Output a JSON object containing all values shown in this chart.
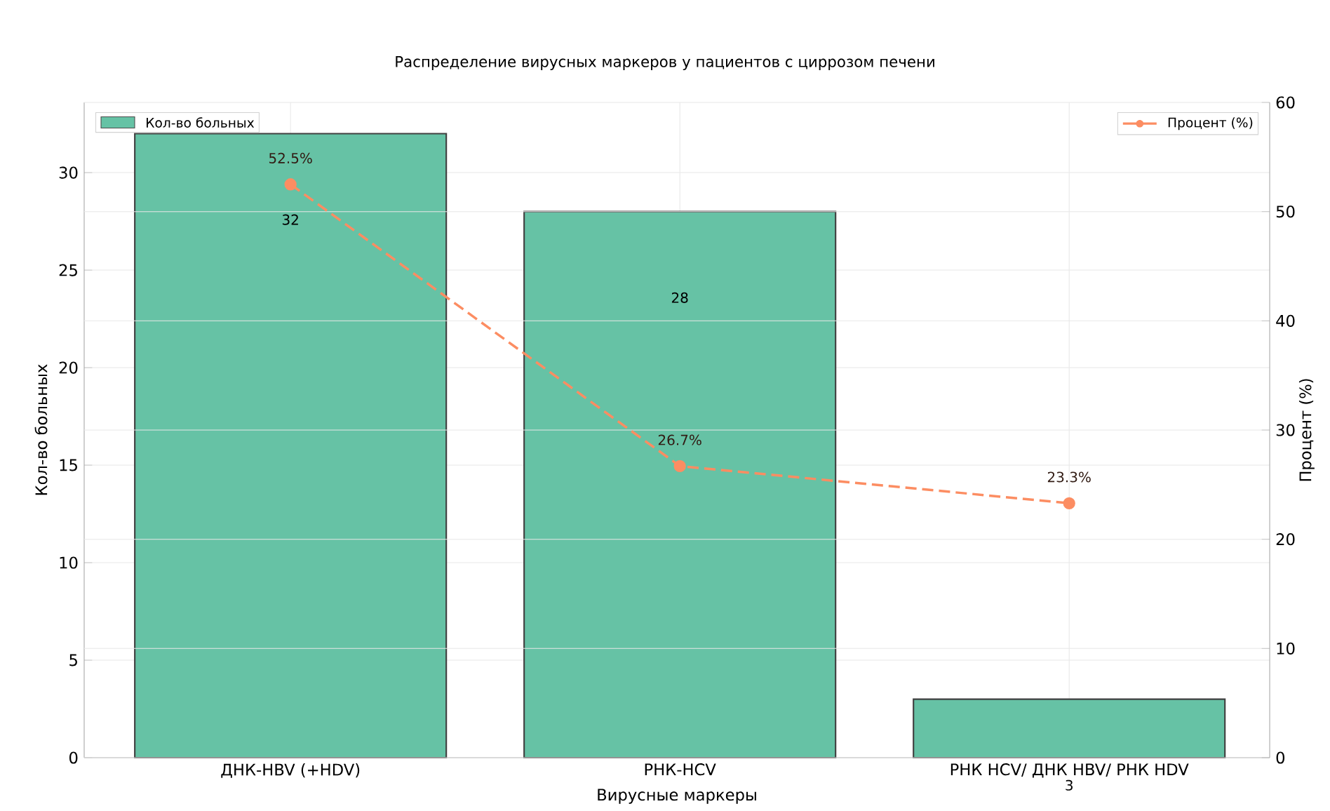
{
  "chart_data": {
    "type": "bar",
    "title": "Распределение вирусных маркеров у пациентов с циррозом печени",
    "xlabel": "Вирусные маркеры",
    "ylabel": "Кол-во больных",
    "y2label": "Процент (%)",
    "categories": [
      "ДНК-HBV (+HDV)",
      "РНК-HCV",
      "РНК HCV/ ДНК HBV/ РНК HDV"
    ],
    "series": [
      {
        "name": "Кол-во больных",
        "color": "#66c2a5",
        "values": [
          32,
          28,
          3
        ],
        "value_labels": [
          "32",
          "28",
          "3"
        ]
      },
      {
        "name": "Процент (%)",
        "type": "line",
        "axis": "y2",
        "color": "#fc8d62",
        "values": [
          52.5,
          26.7,
          23.3
        ],
        "value_labels": [
          "52.5%",
          "26.7%",
          "23.3%"
        ],
        "marker": "circle",
        "line_style": "dashed"
      }
    ],
    "ylim": [
      0,
      33.6
    ],
    "yticks": [
      0,
      5,
      10,
      15,
      20,
      25,
      30
    ],
    "y2lim": [
      0,
      60
    ],
    "y2ticks": [
      0,
      10,
      20,
      30,
      40,
      50,
      60
    ],
    "grid": true,
    "legend": "top"
  }
}
